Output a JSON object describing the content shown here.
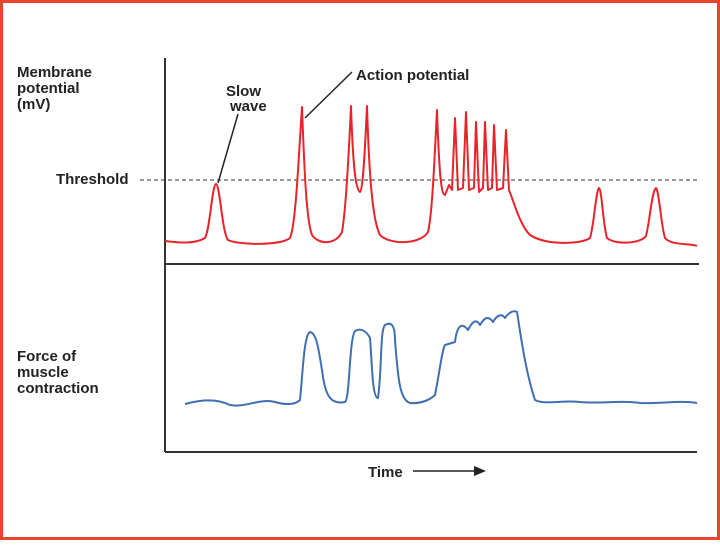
{
  "membrane_label": [
    "Membrane",
    "potential",
    "(mV)"
  ],
  "slow_wave_label": [
    "Slow",
    "wave"
  ],
  "action_potential_label": "Action potential",
  "threshold_label": "Threshold",
  "force_label": [
    "Force of",
    "muscle",
    "contraction"
  ],
  "time_label": "Time"
}
